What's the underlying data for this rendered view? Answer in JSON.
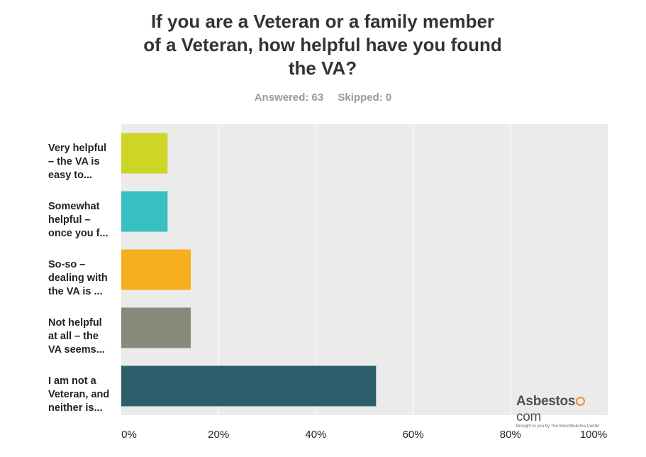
{
  "chart_data": {
    "type": "bar",
    "orientation": "horizontal",
    "title_lines": [
      "If you are a Veteran or a family member",
      "of a Veteran, how helpful have you found",
      "the VA?"
    ],
    "stats": {
      "answered": "Answered: 63",
      "skipped": "Skipped: 0"
    },
    "categories": [
      [
        "Very helpful",
        "– the VA is",
        "easy to..."
      ],
      [
        "Somewhat",
        "helpful –",
        "once you f..."
      ],
      [
        "So-so –",
        "dealing with",
        "the VA is ..."
      ],
      [
        "Not helpful",
        "at all – the",
        "VA seems..."
      ],
      [
        "I am not a",
        "Veteran, and",
        "neither is..."
      ]
    ],
    "values": [
      9.52,
      9.52,
      14.29,
      14.29,
      52.38
    ],
    "colors": [
      "#cdd627",
      "#36c0c0",
      "#f6b01e",
      "#8a8a7a",
      "#2e5e6b"
    ],
    "xlim": [
      0,
      100
    ],
    "xticks": [
      "0%",
      "20%",
      "40%",
      "60%",
      "80%",
      "100%"
    ],
    "grid": true,
    "background": "#ebebeb"
  },
  "branding": {
    "logo_main": "Asbestos",
    "logo_tld": "com",
    "logo_sub": "Brought to you by The Mesothelioma Center"
  }
}
